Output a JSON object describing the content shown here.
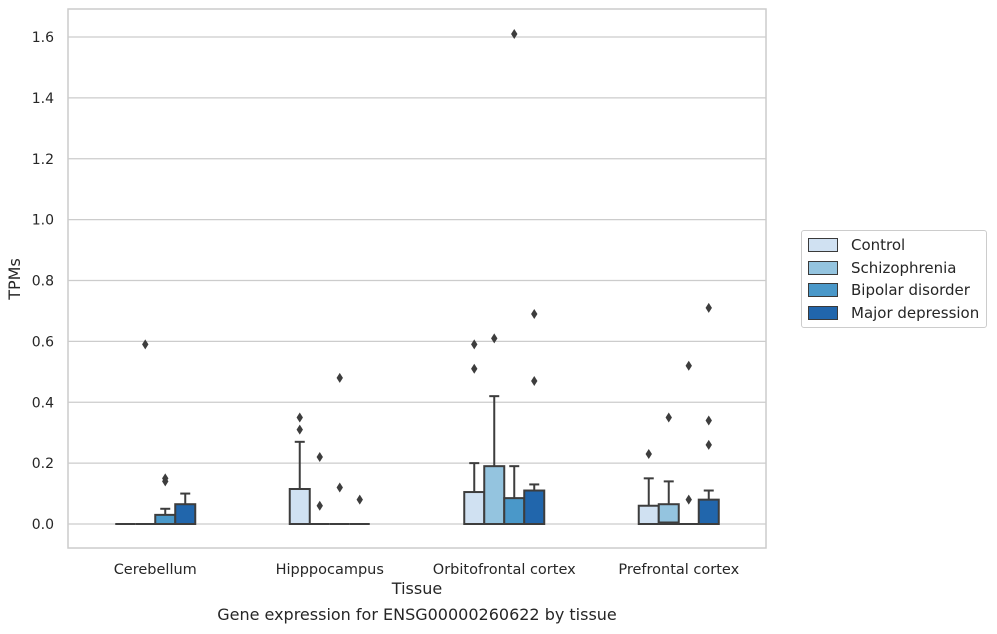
{
  "chart_data": {
    "type": "box",
    "xlabel": "Tissue",
    "ylabel": "TPMs",
    "ylim": [
      -0.08,
      1.69
    ],
    "yticks": [
      "0.0",
      "0.2",
      "0.4",
      "0.6",
      "0.8",
      "1.0",
      "1.2",
      "1.4",
      "1.6"
    ],
    "grid": "horizontal",
    "legend_position": "right",
    "categories": [
      "Cerebellum",
      "Hipppocampus",
      "Orbitofrontal cortex",
      "Prefrontal cortex"
    ],
    "series": [
      {
        "name": "Control",
        "color": "#d0e1f2",
        "boxes": [
          {
            "q1": 0.0,
            "median": 0.0,
            "q3": 0.0,
            "whisker_low": 0.0,
            "whisker_high": 0.0,
            "outliers": []
          },
          {
            "q1": 0.0,
            "median": 0.0,
            "q3": 0.115,
            "whisker_low": 0.0,
            "whisker_high": 0.27,
            "outliers": [
              0.31,
              0.35
            ]
          },
          {
            "q1": 0.0,
            "median": 0.0,
            "q3": 0.105,
            "whisker_low": 0.0,
            "whisker_high": 0.2,
            "outliers": [
              0.51,
              0.59
            ]
          },
          {
            "q1": 0.0,
            "median": 0.0,
            "q3": 0.06,
            "whisker_low": 0.0,
            "whisker_high": 0.15,
            "outliers": [
              0.23
            ]
          }
        ]
      },
      {
        "name": "Schizophrenia",
        "color": "#94c4df",
        "boxes": [
          {
            "q1": 0.0,
            "median": 0.0,
            "q3": 0.0,
            "whisker_low": 0.0,
            "whisker_high": 0.0,
            "outliers": [
              0.59
            ]
          },
          {
            "q1": 0.0,
            "median": 0.0,
            "q3": 0.0,
            "whisker_low": 0.0,
            "whisker_high": 0.0,
            "outliers": [
              0.06,
              0.22
            ]
          },
          {
            "q1": 0.0,
            "median": 0.0,
            "q3": 0.19,
            "whisker_low": 0.0,
            "whisker_high": 0.42,
            "outliers": [
              0.61
            ]
          },
          {
            "q1": 0.0,
            "median": 0.005,
            "q3": 0.065,
            "whisker_low": 0.0,
            "whisker_high": 0.14,
            "outliers": [
              0.35
            ]
          }
        ]
      },
      {
        "name": "Bipolar disorder",
        "color": "#4a98c9",
        "boxes": [
          {
            "q1": 0.0,
            "median": 0.0,
            "q3": 0.03,
            "whisker_low": 0.0,
            "whisker_high": 0.05,
            "outliers": [
              0.14,
              0.15
            ]
          },
          {
            "q1": 0.0,
            "median": 0.0,
            "q3": 0.0,
            "whisker_low": 0.0,
            "whisker_high": 0.0,
            "outliers": [
              0.12,
              0.48
            ]
          },
          {
            "q1": 0.0,
            "median": 0.0,
            "q3": 0.085,
            "whisker_low": 0.0,
            "whisker_high": 0.19,
            "outliers": [
              1.61
            ]
          },
          {
            "q1": 0.0,
            "median": 0.0,
            "q3": 0.0,
            "whisker_low": 0.0,
            "whisker_high": 0.0,
            "outliers": [
              0.08,
              0.52
            ]
          }
        ]
      },
      {
        "name": "Major depression",
        "color": "#2166ac",
        "boxes": [
          {
            "q1": 0.0,
            "median": 0.0,
            "q3": 0.065,
            "whisker_low": 0.0,
            "whisker_high": 0.1,
            "outliers": []
          },
          {
            "q1": 0.0,
            "median": 0.0,
            "q3": 0.0,
            "whisker_low": 0.0,
            "whisker_high": 0.0,
            "outliers": [
              0.08
            ]
          },
          {
            "q1": 0.0,
            "median": 0.0,
            "q3": 0.11,
            "whisker_low": 0.0,
            "whisker_high": 0.13,
            "outliers": [
              0.47,
              0.69
            ]
          },
          {
            "q1": 0.0,
            "median": 0.0,
            "q3": 0.08,
            "whisker_low": 0.0,
            "whisker_high": 0.11,
            "outliers": [
              0.26,
              0.34,
              0.71
            ]
          }
        ]
      }
    ]
  },
  "caption": "Gene expression for ENSG00000260622 by tissue"
}
